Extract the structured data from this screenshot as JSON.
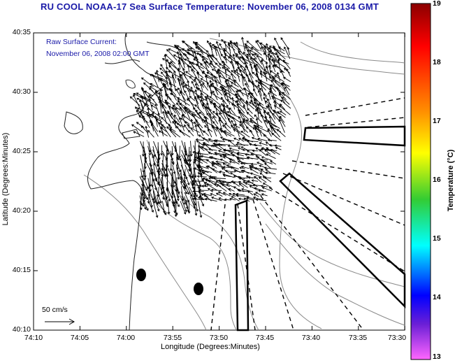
{
  "title": "RU COOL  NOAA-17  Sea Surface Temperature:  November 06, 2008 0134 GMT",
  "subtitle_line1": "Raw Surface Current:",
  "subtitle_line2": "November 06, 2008 02:00 GMT",
  "x_axis_title": "Longitude (Degrees:Minutes)",
  "y_axis_title": "Latitude (Degrees:Minutes)",
  "x_ticks": [
    "74:10",
    "74:05",
    "74:00",
    "73:55",
    "73:50",
    "73:45",
    "73:40",
    "73:35",
    "73:30"
  ],
  "y_ticks": [
    "40:35",
    "40:30",
    "40:25",
    "40:20",
    "40:15",
    "40:10"
  ],
  "colorbar": {
    "title": "Temperature (°C)",
    "ticks": [
      "19",
      "18",
      "17",
      "16",
      "15",
      "14",
      "13"
    ],
    "colors": [
      "#8b0000",
      "#ff0000",
      "#ff8c00",
      "#ffff00",
      "#33cc33",
      "#00ffff",
      "#0000ff",
      "#ff66ff"
    ]
  },
  "scale_vector_label": "50 cm/s",
  "land_mask_color": "#ffffff",
  "vector_color": "#000000"
}
